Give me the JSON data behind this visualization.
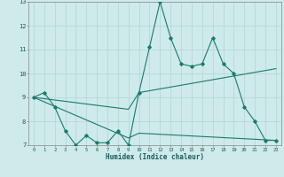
{
  "title": "",
  "xlabel": "Humidex (Indice chaleur)",
  "ylabel": "",
  "xlim": [
    -0.5,
    23.5
  ],
  "ylim": [
    7,
    13
  ],
  "yticks": [
    7,
    8,
    9,
    10,
    11,
    12,
    13
  ],
  "xticks": [
    0,
    1,
    2,
    3,
    4,
    5,
    6,
    7,
    8,
    9,
    10,
    11,
    12,
    13,
    14,
    15,
    16,
    17,
    18,
    19,
    20,
    21,
    22,
    23
  ],
  "background_color": "#ceeaea",
  "grid_color": "#b8d8d8",
  "line_color": "#1a7a6e",
  "line1_x": [
    0,
    1,
    2,
    3,
    4,
    5,
    6,
    7,
    8,
    9,
    10,
    11,
    12,
    13,
    14,
    15,
    16,
    17,
    18,
    19,
    20,
    21,
    22,
    23
  ],
  "line1_y": [
    9.0,
    9.2,
    8.6,
    7.6,
    7.0,
    7.4,
    7.1,
    7.1,
    7.6,
    7.0,
    9.2,
    11.1,
    13.0,
    11.5,
    10.4,
    10.3,
    10.4,
    11.5,
    10.4,
    10.0,
    8.6,
    8.0,
    7.2,
    7.2
  ],
  "line2_x": [
    0,
    9,
    10,
    23
  ],
  "line2_y": [
    9.0,
    8.5,
    9.2,
    10.2
  ],
  "line3_x": [
    0,
    9,
    10,
    23
  ],
  "line3_y": [
    9.0,
    7.3,
    7.5,
    7.2
  ]
}
